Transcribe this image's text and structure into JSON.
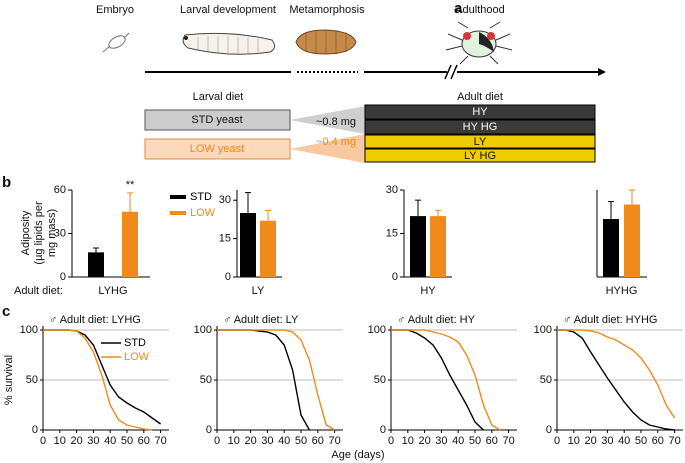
{
  "panel_labels": [
    "a",
    "b",
    "c"
  ],
  "panel_a": {
    "stages": [
      "Embryo",
      "Larval development",
      "Metamorphosis",
      "Adulthood"
    ],
    "larval_diet_label": "Larval diet",
    "adult_diet_label": "Adult diet",
    "larval_diets": [
      "STD yeast",
      "LOW yeast"
    ],
    "masses": [
      "~0.8 mg",
      "~0.4 mg"
    ],
    "adult_diets": [
      "HY",
      "HY HG",
      "LY",
      "LY HG"
    ]
  },
  "panel_b": {
    "ylabel": [
      "Adiposity",
      "(µg lipids per",
      "mg mass)"
    ],
    "diet_label": "Adult diet:"
  },
  "panel_c": {
    "xlabel": "Age (days)",
    "ylabel": "% survival"
  },
  "chart_data": [
    {
      "type": "bar",
      "xlabel": "LYHG",
      "ylim": [
        0,
        60
      ],
      "yticks": [
        0,
        30,
        60
      ],
      "annotation": "**",
      "series": [
        {
          "name": "STD",
          "color": "#000000",
          "values": [
            17
          ],
          "errors": [
            3
          ]
        },
        {
          "name": "LOW",
          "color": "#f08a1c",
          "values": [
            45
          ],
          "errors": [
            13
          ]
        }
      ]
    },
    {
      "type": "bar",
      "xlabel": "LY",
      "ylim": [
        0,
        34
      ],
      "yticks": [
        0,
        15,
        30
      ],
      "series": [
        {
          "color": "#000000",
          "values": [
            25
          ],
          "errors": [
            8
          ]
        },
        {
          "color": "#f08a1c",
          "values": [
            22
          ],
          "errors": [
            4
          ]
        }
      ]
    },
    {
      "type": "bar",
      "xlabel": "HY",
      "ylim": [
        0,
        30
      ],
      "yticks": [
        0,
        15,
        30
      ],
      "series": [
        {
          "color": "#000000",
          "values": [
            21
          ],
          "errors": [
            5.5
          ]
        },
        {
          "color": "#f08a1c",
          "values": [
            21
          ],
          "errors": [
            2
          ]
        }
      ]
    },
    {
      "type": "bar",
      "xlabel": "HYHG",
      "ylim": [
        0,
        30
      ],
      "series": [
        {
          "color": "#000000",
          "values": [
            20
          ],
          "errors": [
            6
          ]
        },
        {
          "color": "#f08a1c",
          "values": [
            25
          ],
          "errors": [
            5
          ]
        }
      ]
    },
    {
      "type": "line",
      "title": "♂ Adult diet: LYHG",
      "xlim": [
        0,
        75
      ],
      "ylim": [
        0,
        100
      ],
      "xticks": [
        0,
        10,
        20,
        30,
        40,
        50,
        60,
        70
      ],
      "yticks": [
        0,
        50,
        100
      ],
      "grid": true,
      "x": [
        0,
        5,
        10,
        15,
        20,
        25,
        30,
        35,
        40,
        45,
        50,
        55,
        60,
        65,
        70,
        75
      ],
      "series": [
        {
          "name": "STD",
          "color": "#000000",
          "values": [
            100,
            100,
            100,
            100,
            99,
            95,
            85,
            65,
            45,
            33,
            27,
            22,
            18,
            12,
            6,
            null
          ]
        },
        {
          "name": "LOW",
          "color": "#f08a1c",
          "values": [
            100,
            100,
            100,
            100,
            99,
            92,
            78,
            55,
            25,
            10,
            5,
            3,
            1,
            0,
            null,
            null
          ]
        }
      ]
    },
    {
      "type": "line",
      "title": "♂ Adult diet: LY",
      "xlim": [
        0,
        75
      ],
      "ylim": [
        0,
        100
      ],
      "xticks": [
        0,
        10,
        20,
        30,
        40,
        50,
        60,
        70
      ],
      "yticks": [
        0,
        50,
        100
      ],
      "grid": true,
      "x": [
        0,
        5,
        10,
        15,
        20,
        25,
        30,
        35,
        40,
        45,
        50,
        55,
        60,
        65,
        70,
        75
      ],
      "series": [
        {
          "color": "#000000",
          "values": [
            100,
            100,
            100,
            100,
            100,
            99,
            98,
            95,
            85,
            60,
            15,
            0,
            null,
            null,
            null,
            null
          ]
        },
        {
          "color": "#f08a1c",
          "values": [
            100,
            100,
            100,
            100,
            100,
            100,
            100,
            100,
            100,
            98,
            90,
            70,
            35,
            5,
            0,
            null
          ]
        }
      ]
    },
    {
      "type": "line",
      "title": "♂ Adult diet: HY",
      "xlim": [
        0,
        75
      ],
      "ylim": [
        0,
        100
      ],
      "xticks": [
        0,
        10,
        20,
        30,
        40,
        50,
        60,
        70
      ],
      "yticks": [
        0,
        50,
        100
      ],
      "grid": true,
      "x": [
        0,
        5,
        10,
        15,
        20,
        25,
        30,
        35,
        40,
        45,
        50,
        55,
        60,
        65,
        70,
        75
      ],
      "series": [
        {
          "color": "#000000",
          "values": [
            100,
            100,
            100,
            97,
            92,
            85,
            72,
            55,
            40,
            25,
            8,
            0,
            null,
            null,
            null,
            null
          ]
        },
        {
          "color": "#f08a1c",
          "values": [
            100,
            100,
            100,
            100,
            100,
            98,
            96,
            93,
            88,
            75,
            55,
            25,
            5,
            0,
            null,
            null
          ]
        }
      ]
    },
    {
      "type": "line",
      "title": "♂ Adult diet: HYHG",
      "xlim": [
        0,
        75
      ],
      "ylim": [
        0,
        100
      ],
      "xticks": [
        0,
        10,
        20,
        30,
        40,
        50,
        60,
        70
      ],
      "yticks": [
        0,
        50,
        100
      ],
      "grid": true,
      "x": [
        0,
        5,
        10,
        15,
        20,
        25,
        30,
        35,
        40,
        45,
        50,
        55,
        60,
        65,
        70,
        75
      ],
      "series": [
        {
          "color": "#000000",
          "values": [
            100,
            100,
            98,
            92,
            78,
            65,
            52,
            40,
            28,
            18,
            10,
            5,
            3,
            1,
            0,
            null
          ]
        },
        {
          "color": "#f08a1c",
          "values": [
            100,
            100,
            100,
            100,
            99,
            97,
            93,
            90,
            85,
            80,
            72,
            60,
            45,
            25,
            12,
            null
          ]
        }
      ]
    }
  ]
}
